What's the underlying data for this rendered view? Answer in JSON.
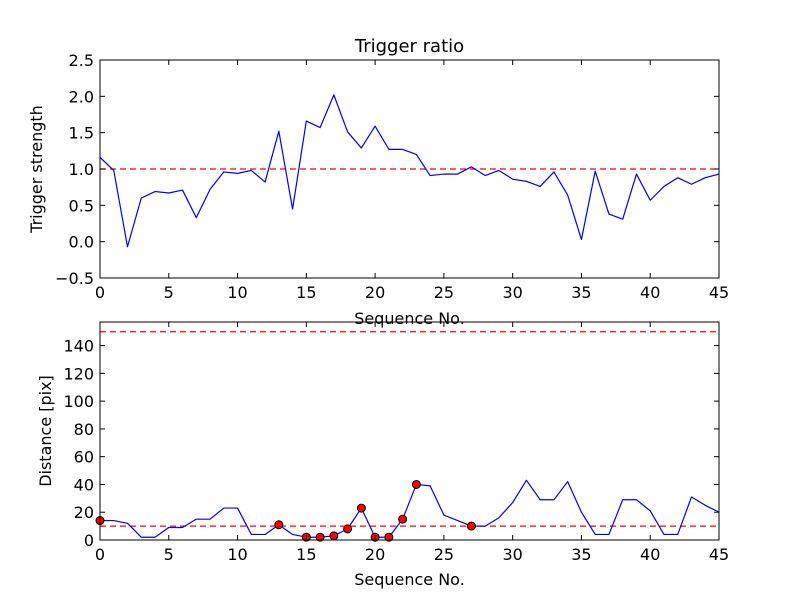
{
  "chart_data": [
    {
      "type": "line",
      "title": "Trigger ratio",
      "xlabel": "Sequence No.",
      "ylabel": "Trigger strength",
      "xlim": [
        0,
        45
      ],
      "ylim": [
        -0.5,
        2.5
      ],
      "xticks": [
        0,
        5,
        10,
        15,
        20,
        25,
        30,
        35,
        40,
        45
      ],
      "xtick_labels": [
        "0",
        "5",
        "10",
        "15",
        "20",
        "25",
        "30",
        "35",
        "40",
        "45"
      ],
      "yticks": [
        -0.5,
        0.0,
        0.5,
        1.0,
        1.5,
        2.0,
        2.5
      ],
      "ytick_labels": [
        "−0.5",
        "0.0",
        "0.5",
        "1.0",
        "1.5",
        "2.0",
        "2.5"
      ],
      "series": [
        {
          "color": "#0000ff",
          "style": "solid",
          "x": [
            0,
            1,
            2,
            3,
            4,
            5,
            6,
            7,
            8,
            9,
            10,
            11,
            12,
            13,
            14,
            15,
            16,
            17,
            18,
            19,
            20,
            21,
            22,
            23,
            24,
            25,
            26,
            27,
            28,
            29,
            30,
            31,
            32,
            33,
            34,
            35,
            36,
            37,
            38,
            39,
            40,
            41,
            42,
            43,
            44,
            45
          ],
          "y": [
            1.16,
            0.98,
            -0.07,
            0.6,
            0.69,
            0.67,
            0.71,
            0.33,
            0.72,
            0.96,
            0.94,
            0.98,
            0.82,
            1.52,
            0.45,
            1.66,
            1.57,
            2.02,
            1.51,
            1.29,
            1.59,
            1.27,
            1.27,
            1.2,
            0.91,
            0.93,
            0.93,
            1.03,
            0.91,
            0.98,
            0.86,
            0.83,
            0.76,
            0.96,
            0.64,
            0.03,
            0.97,
            0.38,
            0.31,
            0.93,
            0.57,
            0.76,
            0.88,
            0.79,
            0.88,
            0.93
          ]
        }
      ],
      "hlines": [
        {
          "y": 1.0,
          "color": "#ff0000",
          "style": "dashed"
        }
      ]
    },
    {
      "type": "line",
      "title": "",
      "xlabel": "Sequence No.",
      "ylabel": "Distance [pix]",
      "xlim": [
        0,
        45
      ],
      "ylim": [
        0,
        157
      ],
      "xticks": [
        0,
        5,
        10,
        15,
        20,
        25,
        30,
        35,
        40,
        45
      ],
      "xtick_labels": [
        "0",
        "5",
        "10",
        "15",
        "20",
        "25",
        "30",
        "35",
        "40",
        "45"
      ],
      "yticks": [
        0,
        20,
        40,
        60,
        80,
        100,
        120,
        140
      ],
      "ytick_labels": [
        "0",
        "20",
        "40",
        "60",
        "80",
        "100",
        "120",
        "140"
      ],
      "series": [
        {
          "color": "#0000ff",
          "style": "solid",
          "x": [
            0,
            1,
            2,
            3,
            4,
            5,
            6,
            7,
            8,
            9,
            10,
            11,
            12,
            13,
            14,
            15,
            16,
            17,
            18,
            19,
            20,
            21,
            22,
            23,
            24,
            25,
            26,
            27,
            28,
            29,
            30,
            31,
            32,
            33,
            34,
            35,
            36,
            37,
            38,
            39,
            40,
            41,
            42,
            43,
            44,
            45
          ],
          "y": [
            14,
            14,
            12,
            2,
            2,
            9,
            9,
            15,
            15,
            23,
            23,
            4,
            4,
            11,
            4,
            2,
            2,
            3,
            8,
            23,
            2,
            2,
            15,
            40,
            39,
            18,
            14,
            10,
            10,
            16,
            27,
            43,
            29,
            29,
            42,
            20,
            4,
            4,
            29,
            29,
            21,
            4,
            4,
            31,
            25,
            20
          ]
        },
        {
          "color": "#ff0000",
          "style": "markers",
          "x": [
            0,
            13,
            15,
            16,
            17,
            18,
            19,
            20,
            21,
            22,
            23,
            27
          ],
          "y": [
            14,
            11,
            2,
            2,
            3,
            8,
            23,
            2,
            2,
            15,
            40,
            10
          ]
        }
      ],
      "hlines": [
        {
          "y": 150,
          "color": "#ff0000",
          "style": "dashed"
        },
        {
          "y": 10,
          "color": "#ff0000",
          "style": "dashed"
        }
      ]
    }
  ]
}
